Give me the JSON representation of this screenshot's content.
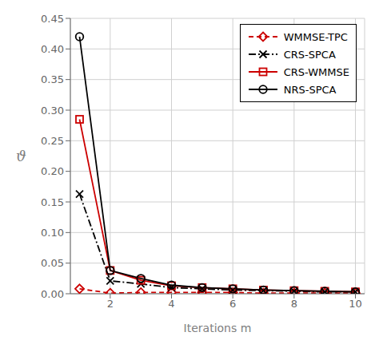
{
  "chart_data": {
    "type": "line",
    "x_label": "Iterations m",
    "y_label": "ϑ",
    "x": [
      1,
      2,
      3,
      4,
      5,
      6,
      7,
      8,
      9,
      10
    ],
    "series": [
      {
        "name": "WMMSE-TPC",
        "color": "#cc0000",
        "line_style": "dashed",
        "marker": "diamond",
        "values": [
          0.008,
          0.001,
          0.002,
          0.002,
          0.002,
          0.002,
          0.001,
          0.001,
          0.001,
          0.001
        ]
      },
      {
        "name": "CRS-SPCA",
        "color": "#000000",
        "line_style": "dashdot",
        "marker": "cross",
        "values": [
          0.163,
          0.021,
          0.016,
          0.01,
          0.008,
          0.006,
          0.005,
          0.004,
          0.003,
          0.003
        ]
      },
      {
        "name": "CRS-WMMSE",
        "color": "#cc0000",
        "line_style": "solid",
        "marker": "square",
        "values": [
          0.285,
          0.038,
          0.022,
          0.013,
          0.01,
          0.008,
          0.006,
          0.005,
          0.004,
          0.003
        ]
      },
      {
        "name": "NRS-SPCA",
        "color": "#000000",
        "line_style": "solid",
        "marker": "circle",
        "values": [
          0.42,
          0.038,
          0.025,
          0.014,
          0.01,
          0.008,
          0.006,
          0.005,
          0.004,
          0.003
        ]
      }
    ],
    "xlim": [
      0.7,
      10.3
    ],
    "ylim": [
      0.0,
      0.45
    ],
    "xticks": [
      2,
      4,
      6,
      8,
      10
    ],
    "yticks": [
      {
        "value": 0.0,
        "label": "0.00"
      },
      {
        "value": 0.05,
        "label": "0.05"
      },
      {
        "value": 0.1,
        "label": "0.10"
      },
      {
        "value": 0.15,
        "label": "0.15"
      },
      {
        "value": 0.2,
        "label": "0.20"
      },
      {
        "value": 0.25,
        "label": "0.25"
      },
      {
        "value": 0.3,
        "label": "0.30"
      },
      {
        "value": 0.35,
        "label": "0.35"
      },
      {
        "value": 0.4,
        "label": "0.40"
      },
      {
        "value": 0.45,
        "label": "0.45"
      }
    ],
    "grid": true,
    "legend": "upper right"
  }
}
